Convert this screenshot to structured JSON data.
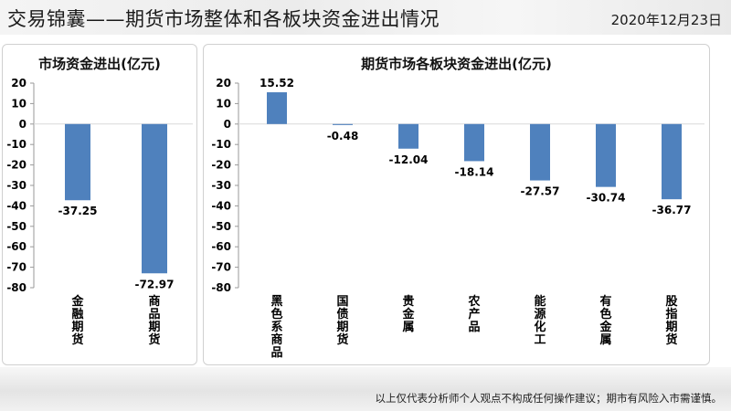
{
  "header": {
    "title": "交易锦囊——期货市场整体和各板块资金进出情况",
    "date": "2020年12月23日"
  },
  "footer": {
    "disclaimer": "以上仅代表分析师个人观点不构成任何操作建议；期市有风险入市需谨慎。"
  },
  "colors": {
    "bar": "#4f81bd",
    "axis": "#999999"
  },
  "chart_data": [
    {
      "type": "bar",
      "title": "市场资金进出(亿元)",
      "categories": [
        "金融期货",
        "商品期货"
      ],
      "values": [
        -37.25,
        -72.97
      ],
      "data_labels": [
        "-37.25",
        "-72.97"
      ],
      "ylim": [
        -80,
        20
      ],
      "yticks": [
        20,
        10,
        0,
        -10,
        -20,
        -30,
        -40,
        -50,
        -60,
        -70,
        -80
      ],
      "grid": false,
      "legend": "none"
    },
    {
      "type": "bar",
      "title": "期货市场各板块资金进出(亿元)",
      "categories": [
        "黑色系商品",
        "国债期货",
        "贵金属",
        "农产品",
        "能源化工",
        "有色金属",
        "股指期货"
      ],
      "values": [
        15.52,
        -0.48,
        -12.04,
        -18.14,
        -27.57,
        -30.74,
        -36.77
      ],
      "data_labels": [
        "15.52",
        "-0.48",
        "-12.04",
        "-18.14",
        "-27.57",
        "-30.74",
        "-36.77"
      ],
      "ylim": [
        -80,
        20
      ],
      "yticks": [
        20,
        10,
        0,
        -10,
        -20,
        -30,
        -40,
        -50,
        -60,
        -70,
        -80
      ],
      "grid": false,
      "legend": "none"
    }
  ]
}
